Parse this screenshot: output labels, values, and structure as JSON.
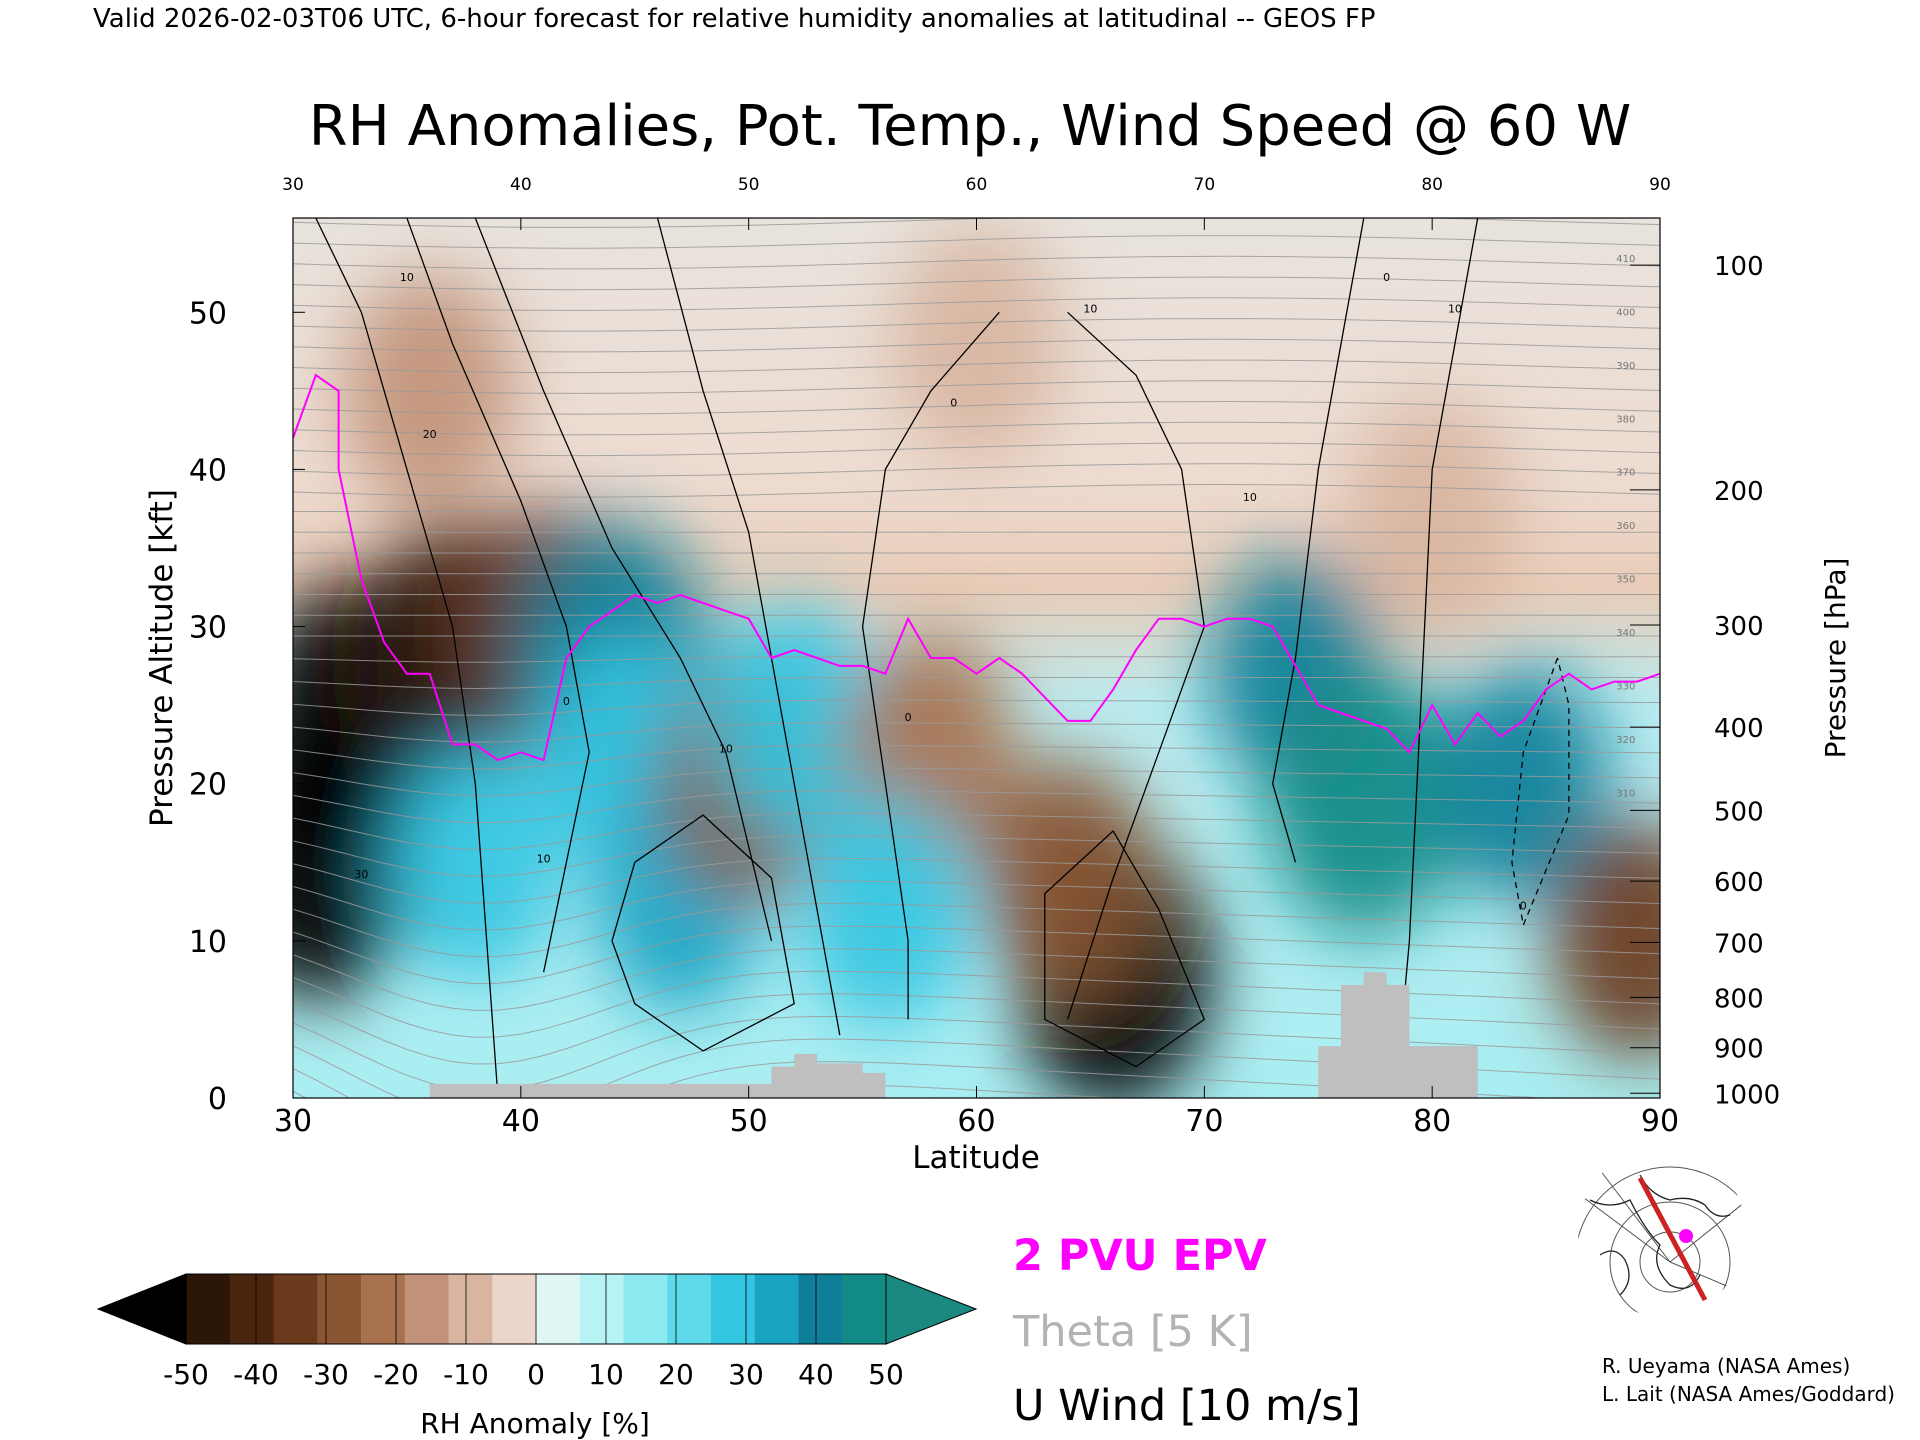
{
  "header": {
    "valid_line": "Valid 2026-02-03T06 UTC, 6-hour forecast for relative humidity anomalies at latitudinal -- GEOS FP",
    "title": "RH Anomalies, Pot. Temp., Wind Speed @ 60 W"
  },
  "chart_data": {
    "type": "heatmap",
    "xlabel": "Latitude",
    "ylabel": "Pressure Altitude [kft]",
    "y2label": "Pressure [hPa]",
    "xlim": [
      30,
      90
    ],
    "ylim": [
      0,
      56
    ],
    "x_ticks": [
      30,
      40,
      50,
      60,
      70,
      80,
      90
    ],
    "x_tick_labels": [
      "30",
      "40",
      "50",
      "60",
      "70",
      "80",
      "90"
    ],
    "y_ticks": [
      0,
      10,
      20,
      30,
      40,
      50
    ],
    "y_tick_labels": [
      "0",
      "10",
      "20",
      "30",
      "40",
      "50"
    ],
    "pressure_ticks": [
      {
        "label": "100",
        "kft": 53.0
      },
      {
        "label": "200",
        "kft": 38.7
      },
      {
        "label": "300",
        "kft": 30.1
      },
      {
        "label": "400",
        "kft": 23.6
      },
      {
        "label": "500",
        "kft": 18.3
      },
      {
        "label": "600",
        "kft": 13.8
      },
      {
        "label": "700",
        "kft": 9.9
      },
      {
        "label": "800",
        "kft": 6.4
      },
      {
        "label": "900",
        "kft": 3.2
      },
      {
        "label": "1000",
        "kft": 0.3
      }
    ],
    "theta_levels_k": [
      280,
      290,
      300,
      310,
      320,
      330,
      340,
      350,
      360,
      370,
      380,
      390,
      400,
      410,
      420
    ],
    "rh_anomaly_blobs": [
      {
        "lat": 32.5,
        "kft": 24,
        "value": -55
      },
      {
        "lat": 37,
        "kft": 28,
        "value": -45
      },
      {
        "lat": 31,
        "kft": 15,
        "value": -55
      },
      {
        "lat": 41,
        "kft": 30,
        "value": -35
      },
      {
        "lat": 44,
        "kft": 28,
        "value": 42
      },
      {
        "lat": 44.5,
        "kft": 22,
        "value": 25
      },
      {
        "lat": 47,
        "kft": 13,
        "value": 35
      },
      {
        "lat": 38,
        "kft": 15,
        "value": 28
      },
      {
        "lat": 50,
        "kft": 20,
        "value": -30
      },
      {
        "lat": 52,
        "kft": 24,
        "value": 30
      },
      {
        "lat": 58,
        "kft": 22,
        "value": -25
      },
      {
        "lat": 56,
        "kft": 12,
        "value": 25
      },
      {
        "lat": 66,
        "kft": 8,
        "value": -55
      },
      {
        "lat": 64,
        "kft": 14,
        "value": -30
      },
      {
        "lat": 74,
        "kft": 27,
        "value": 40
      },
      {
        "lat": 77,
        "kft": 19,
        "value": 45
      },
      {
        "lat": 84,
        "kft": 20,
        "value": 38
      },
      {
        "lat": 89,
        "kft": 10,
        "value": -35
      },
      {
        "lat": 60,
        "kft": 48,
        "value": -8
      },
      {
        "lat": 36,
        "kft": 45,
        "value": -15
      },
      {
        "lat": 80,
        "kft": 37,
        "value": -12
      }
    ],
    "wind_contour_labels": [
      "10",
      "20",
      "30",
      "0",
      "10",
      "10",
      "0",
      "10",
      "0",
      "10",
      "0",
      "10",
      "0"
    ],
    "topography_kft": [
      {
        "lat": 36,
        "h": 0.9
      },
      {
        "lat": 50,
        "h": 0.9
      },
      {
        "lat": 51,
        "h": 2.0
      },
      {
        "lat": 52,
        "h": 2.8
      },
      {
        "lat": 53,
        "h": 2.2
      },
      {
        "lat": 55,
        "h": 1.6
      },
      {
        "lat": 56,
        "h": 0
      },
      {
        "lat": 75,
        "h": 3.3
      },
      {
        "lat": 76,
        "h": 7.2
      },
      {
        "lat": 77,
        "h": 8.0
      },
      {
        "lat": 78,
        "h": 7.2
      },
      {
        "lat": 79,
        "h": 3.3
      },
      {
        "lat": 81,
        "h": 3.3
      },
      {
        "lat": 82,
        "h": 0
      }
    ],
    "pv_2pvu_line": [
      [
        30,
        42
      ],
      [
        31,
        46
      ],
      [
        32,
        45
      ],
      [
        32,
        40
      ],
      [
        33,
        33
      ],
      [
        34,
        29
      ],
      [
        35,
        27
      ],
      [
        36,
        27
      ],
      [
        37,
        22.5
      ],
      [
        38,
        22.5
      ],
      [
        39,
        21.5
      ],
      [
        40,
        22
      ],
      [
        41,
        21.5
      ],
      [
        42,
        28
      ],
      [
        43,
        30
      ],
      [
        44,
        31
      ],
      [
        45,
        32
      ],
      [
        46,
        31.5
      ],
      [
        47,
        32
      ],
      [
        48,
        31.5
      ],
      [
        49,
        31
      ],
      [
        50,
        30.5
      ],
      [
        51,
        28
      ],
      [
        52,
        28.5
      ],
      [
        53,
        28
      ],
      [
        54,
        27.5
      ],
      [
        55,
        27.5
      ],
      [
        56,
        27
      ],
      [
        57,
        30.5
      ],
      [
        58,
        28
      ],
      [
        59,
        28
      ],
      [
        60,
        27
      ],
      [
        61,
        28
      ],
      [
        62,
        27
      ],
      [
        63,
        25.5
      ],
      [
        64,
        24
      ],
      [
        65,
        24
      ],
      [
        66,
        26
      ],
      [
        67,
        28.5
      ],
      [
        68,
        30.5
      ],
      [
        69,
        30.5
      ],
      [
        70,
        30
      ],
      [
        71,
        30.5
      ],
      [
        72,
        30.5
      ],
      [
        73,
        30
      ],
      [
        74,
        27.5
      ],
      [
        75,
        25
      ],
      [
        76,
        24.5
      ],
      [
        77,
        24
      ],
      [
        78,
        23.5
      ],
      [
        79,
        22
      ],
      [
        80,
        25
      ],
      [
        81,
        22.5
      ],
      [
        82,
        24.5
      ],
      [
        83,
        23
      ],
      [
        84,
        24
      ],
      [
        85,
        26
      ],
      [
        86,
        27
      ],
      [
        87,
        26
      ],
      [
        88,
        26.5
      ],
      [
        89,
        26.5
      ],
      [
        90,
        27
      ]
    ],
    "colorbar": {
      "label": "RH Anomaly [%]",
      "ticks": [
        "-50",
        "-40",
        "-30",
        "-20",
        "-10",
        "0",
        "10",
        "20",
        "30",
        "40",
        "50"
      ],
      "colors": [
        "#2b1608",
        "#4a260f",
        "#6b3a1d",
        "#8a5533",
        "#a8724f",
        "#c2937a",
        "#d8b5a1",
        "#ecd6ca",
        "#dff6f5",
        "#b7f2f4",
        "#8ceaf0",
        "#5edaeb",
        "#33c6e2",
        "#1aa4c4",
        "#0f7f99",
        "#128a86"
      ],
      "under_color": "#000000",
      "over_color": "#1a8a80"
    },
    "legend": [
      {
        "label": "2 PVU EPV",
        "color": "#ff00ff"
      },
      {
        "label": "Theta [5 K]",
        "color": "#b3b3b3"
      },
      {
        "label": "U Wind [10 m/s]",
        "color": "#000000"
      }
    ],
    "colors": {
      "pv": "#ff00ff",
      "theta": "#9a9a9a",
      "wind": "#000000",
      "topo": "#bfbfbf",
      "inset_line": "#cc2222"
    }
  },
  "credits": [
    "R. Ueyama (NASA Ames)",
    "L. Lait (NASA Ames/Goddard)"
  ]
}
